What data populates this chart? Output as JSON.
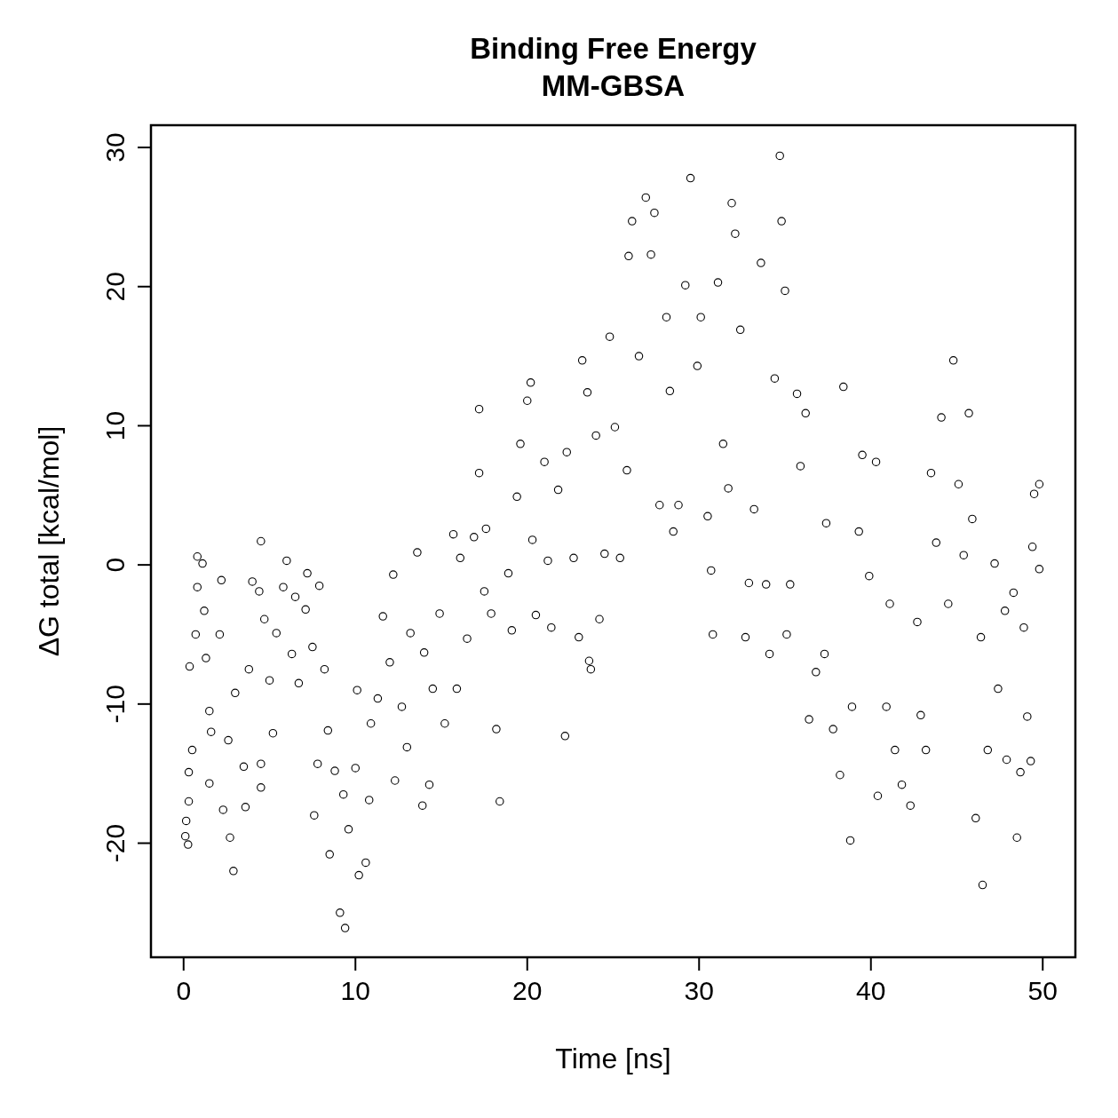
{
  "chart_data": {
    "type": "scatter",
    "title": "Binding Free Energy",
    "subtitle": "MM-GBSA",
    "xlabel": "Time [ns]",
    "ylabel": "ΔG total [kcal/mol]",
    "xlim": [
      -1.9,
      51.9
    ],
    "ylim": [
      -28.2,
      31.6
    ],
    "xticks": [
      0,
      10,
      20,
      30,
      40,
      50
    ],
    "yticks": [
      -20,
      -10,
      0,
      10,
      20,
      30
    ],
    "marker": "circle",
    "series": [
      {
        "color": "#000000",
        "x": [
          0.1,
          0.26,
          0.15,
          0.3,
          0.3,
          0.5,
          0.35,
          0.7,
          0.8,
          1.1,
          0.8,
          1.2,
          1.3,
          1.5,
          1.6,
          1.5,
          2.1,
          2.2,
          2.3,
          2.6,
          2.7,
          2.9,
          3.0,
          3.5,
          3.6,
          3.8,
          4.0,
          4.4,
          4.5,
          4.7,
          4.5,
          4.5,
          5.0,
          5.2,
          5.4,
          5.8,
          6.0,
          6.3,
          6.5,
          6.7,
          7.1,
          7.2,
          7.5,
          7.6,
          7.8,
          7.9,
          8.2,
          8.4,
          8.5,
          8.8,
          9.1,
          9.4,
          9.3,
          9.6,
          10.0,
          10.2,
          10.1,
          10.6,
          10.8,
          10.9,
          11.3,
          11.6,
          12.0,
          12.2,
          12.3,
          12.7,
          13.0,
          13.2,
          13.6,
          13.9,
          14.0,
          14.3,
          14.5,
          14.9,
          15.2,
          15.7,
          15.9,
          16.1,
          16.5,
          16.9,
          17.2,
          17.2,
          17.5,
          17.6,
          17.9,
          18.2,
          18.4,
          18.9,
          19.1,
          19.4,
          19.6,
          20.0,
          20.2,
          20.3,
          20.5,
          21.0,
          21.2,
          21.4,
          21.8,
          22.2,
          22.3,
          22.7,
          23.0,
          23.2,
          23.5,
          23.6,
          23.7,
          24.0,
          24.2,
          24.5,
          24.8,
          25.1,
          25.4,
          25.8,
          25.9,
          26.1,
          26.5,
          26.9,
          27.2,
          27.4,
          27.7,
          28.1,
          28.3,
          28.5,
          28.8,
          29.2,
          29.5,
          29.9,
          30.1,
          30.5,
          30.7,
          30.8,
          31.1,
          31.4,
          31.7,
          31.9,
          32.1,
          32.4,
          32.7,
          32.9,
          33.2,
          33.6,
          33.9,
          34.1,
          34.4,
          34.7,
          34.8,
          35.0,
          35.1,
          35.3,
          35.7,
          35.9,
          36.2,
          36.4,
          36.8,
          37.3,
          37.4,
          37.8,
          38.2,
          38.4,
          38.8,
          38.9,
          39.3,
          39.5,
          39.9,
          40.3,
          40.4,
          40.9,
          41.1,
          41.4,
          41.8,
          42.3,
          42.7,
          42.9,
          43.2,
          43.5,
          43.8,
          44.1,
          44.5,
          44.8,
          45.1,
          45.4,
          45.7,
          45.9,
          46.1,
          46.4,
          46.5,
          46.8,
          47.2,
          47.4,
          47.8,
          47.9,
          48.3,
          48.5,
          48.7,
          48.9,
          49.1,
          49.3,
          49.4,
          49.5,
          49.8,
          49.8
        ],
        "values": [
          -19.5,
          -20.1,
          -18.4,
          -14.9,
          -17,
          -13.3,
          -7.3,
          -5,
          0.6,
          0.1,
          -1.6,
          -3.3,
          -6.7,
          -10.5,
          -12,
          -15.7,
          -5,
          -1.1,
          -17.6,
          -12.6,
          -19.6,
          -22,
          -9.2,
          -14.5,
          -17.4,
          -7.5,
          -1.2,
          -1.9,
          1.7,
          -3.9,
          -14.3,
          -16,
          -8.3,
          -12.1,
          -4.9,
          -1.6,
          0.3,
          -6.4,
          -2.3,
          -8.5,
          -3.2,
          -0.6,
          -5.9,
          -18,
          -14.3,
          -1.5,
          -7.5,
          -11.9,
          -20.8,
          -14.8,
          -25,
          -26.1,
          -16.5,
          -19,
          -14.6,
          -22.3,
          -9,
          -21.4,
          -16.9,
          -11.4,
          -9.6,
          -3.7,
          -7,
          -0.7,
          -15.5,
          -10.2,
          -13.1,
          -4.9,
          0.9,
          -17.3,
          -6.3,
          -15.8,
          -8.9,
          -3.5,
          -11.4,
          2.2,
          -8.9,
          0.5,
          -5.3,
          2,
          11.2,
          6.6,
          -1.9,
          2.6,
          -3.5,
          -11.8,
          -17,
          -0.6,
          -4.7,
          4.9,
          8.7,
          11.8,
          13.1,
          1.8,
          -3.6,
          7.4,
          0.3,
          -4.5,
          5.4,
          -12.3,
          8.1,
          0.5,
          -5.2,
          14.7,
          12.4,
          -6.9,
          -7.5,
          9.3,
          -3.9,
          0.8,
          16.4,
          9.9,
          0.5,
          6.8,
          22.2,
          24.7,
          15,
          26.4,
          22.3,
          25.3,
          4.3,
          17.8,
          12.5,
          2.4,
          4.3,
          20.1,
          27.8,
          14.3,
          17.8,
          3.5,
          -0.4,
          -5,
          20.3,
          8.7,
          5.5,
          26,
          23.8,
          16.9,
          -5.2,
          -1.3,
          4,
          21.7,
          -1.4,
          -6.4,
          13.4,
          29.4,
          24.7,
          19.7,
          -5,
          -1.4,
          12.3,
          7.1,
          10.9,
          -11.1,
          -7.7,
          -6.4,
          3,
          -11.8,
          -15.1,
          12.8,
          -19.8,
          -10.2,
          2.4,
          7.9,
          -0.8,
          7.4,
          -16.6,
          -10.2,
          -2.8,
          -13.3,
          -15.8,
          -17.3,
          -4.1,
          -10.8,
          -13.3,
          6.6,
          1.6,
          10.6,
          -2.8,
          14.7,
          5.8,
          0.7,
          10.9,
          3.3,
          -18.2,
          -5.2,
          -23,
          -13.3,
          0.1,
          -8.9,
          -3.3,
          -14,
          -2,
          -19.6,
          -14.9,
          -4.5,
          -10.9,
          -14.1,
          1.3,
          5.1,
          5.8,
          -0.3
        ]
      }
    ]
  }
}
